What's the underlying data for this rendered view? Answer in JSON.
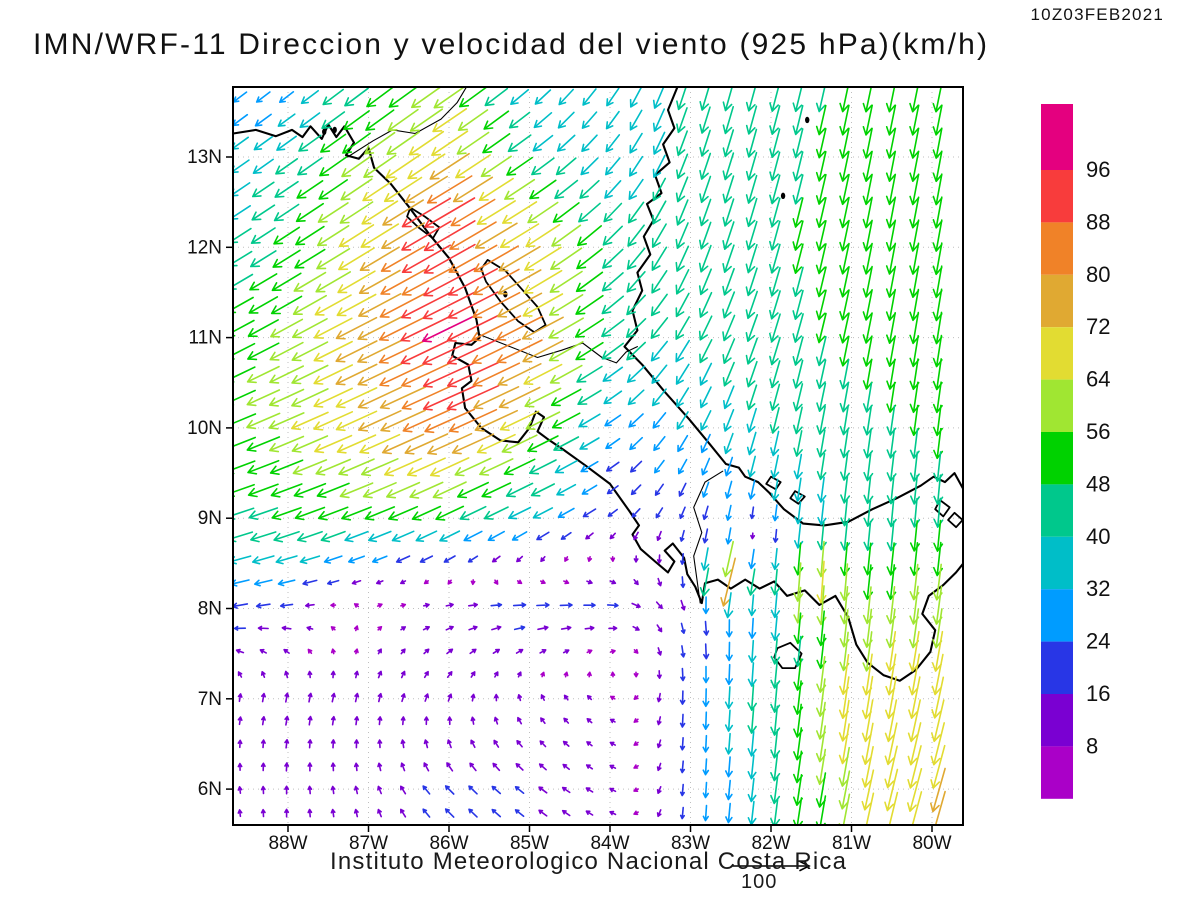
{
  "header": {
    "title": "IMN/WRF-11 Direccion y velocidad del viento (925 hPa)(km/h)",
    "timestamp": "10Z03FEB2021"
  },
  "footer": {
    "institution": "Instituto Meteorologico Nacional Costa Rica",
    "reference_arrow_label": "100"
  },
  "axes": {
    "lat_labels": [
      "13N",
      "12N",
      "11N",
      "10N",
      "9N",
      "8N",
      "7N",
      "6N"
    ],
    "lat_values": [
      13,
      12,
      11,
      10,
      9,
      8,
      7,
      6
    ],
    "lon_labels": [
      "88W",
      "87W",
      "86W",
      "85W",
      "84W",
      "83W",
      "82W",
      "81W",
      "80W"
    ],
    "lon_values": [
      -88,
      -87,
      -86,
      -85,
      -84,
      -83,
      -82,
      -81,
      -80
    ]
  },
  "colorbar": {
    "labels": [
      "96",
      "88",
      "80",
      "72",
      "64",
      "56",
      "48",
      "40",
      "32",
      "24",
      "16",
      "8"
    ],
    "levels": [
      8,
      16,
      24,
      32,
      40,
      48,
      56,
      64,
      72,
      80,
      88,
      96
    ],
    "colors": [
      "#aa00c8",
      "#7a00d2",
      "#2836e6",
      "#009cff",
      "#00bec8",
      "#00c88c",
      "#00d200",
      "#a0e632",
      "#e2dc32",
      "#e0a932",
      "#f08228",
      "#f83c3c",
      "#e4007f"
    ]
  },
  "chart_data": {
    "type": "vector_field_map",
    "variable": "Direccion y velocidad del viento",
    "level": "925 hPa",
    "units": "km/h",
    "valid_time": "10Z03FEB2021",
    "model": "IMN/WRF-11",
    "lon_range": [
      -88.68,
      -79.61
    ],
    "lat_range": [
      5.6,
      13.78
    ],
    "speed_levels": [
      8,
      16,
      24,
      32,
      40,
      48,
      56,
      64,
      72,
      80,
      88,
      96
    ],
    "speed_colors": [
      "#aa00c8",
      "#7a00d2",
      "#2836e6",
      "#009cff",
      "#00bec8",
      "#00c88c",
      "#00d200",
      "#a0e632",
      "#e2dc32",
      "#e0a932",
      "#f08228",
      "#f83c3c",
      "#e4007f"
    ],
    "reference_speed": 100,
    "grid": {
      "lons": [
        -89,
        -88,
        -87,
        -86,
        -85,
        -84,
        -83,
        -82,
        -81,
        -80,
        -79
      ],
      "lats": [
        14,
        13,
        12,
        11,
        10,
        9,
        8,
        7,
        6
      ],
      "u": [
        [
          -18,
          -16,
          -36,
          -45,
          -20,
          -18,
          -12,
          -12,
          -10,
          -10,
          -10
        ],
        [
          -24,
          -34,
          -48,
          -60,
          -35,
          -22,
          -14,
          -12,
          -10,
          -9,
          -9
        ],
        [
          -32,
          -42,
          -58,
          -80,
          -62,
          -32,
          -16,
          -13,
          -10,
          -9,
          -9
        ],
        [
          -42,
          -52,
          -68,
          -88,
          -72,
          -36,
          -20,
          -14,
          -10,
          -8,
          -8
        ],
        [
          -46,
          -56,
          -66,
          -76,
          -58,
          -24,
          -16,
          -10,
          -7,
          -6,
          -6
        ],
        [
          -42,
          -46,
          -46,
          -42,
          -32,
          -14,
          -6,
          -4,
          -4,
          -4,
          -4
        ],
        [
          -26,
          -18,
          4,
          13,
          22,
          18,
          4,
          -3,
          -6,
          -8,
          -10
        ],
        [
          2,
          3,
          3,
          4,
          -4,
          -7,
          0,
          -4,
          -10,
          -14,
          -14
        ],
        [
          -2,
          0,
          -3,
          -13,
          -13,
          -9,
          -1,
          -5,
          -12,
          -20,
          -18
        ]
      ],
      "v": [
        [
          -14,
          -13,
          -28,
          -32,
          -20,
          -28,
          -42,
          -46,
          -47,
          -47,
          -50
        ],
        [
          -17,
          -24,
          -34,
          -40,
          -25,
          -26,
          -40,
          -45,
          -48,
          -48,
          -50
        ],
        [
          -20,
          -27,
          -36,
          -45,
          -38,
          -30,
          -42,
          -46,
          -49,
          -50,
          -52
        ],
        [
          -22,
          -28,
          -34,
          -42,
          -36,
          -26,
          -36,
          -44,
          -48,
          -50,
          -52
        ],
        [
          -18,
          -24,
          -30,
          -34,
          -28,
          -16,
          -28,
          -40,
          -46,
          -48,
          -50
        ],
        [
          -13,
          -16,
          -18,
          -20,
          -16,
          -10,
          -18,
          -30,
          -42,
          -46,
          -48
        ],
        [
          -5,
          -2,
          2,
          3,
          2,
          0,
          -16,
          -32,
          -58,
          -62,
          -58
        ],
        [
          11,
          14,
          13,
          11,
          9,
          5,
          -24,
          -46,
          -68,
          -66,
          -60
        ],
        [
          9,
          12,
          11,
          13,
          10,
          5,
          -20,
          -42,
          -62,
          -70,
          -64
        ]
      ]
    },
    "local_features": [
      {
        "name": "papagayo-jet-core",
        "lon": -86.1,
        "lat": 12.25,
        "u": -82,
        "v": -48,
        "r": 0.35
      },
      {
        "name": "nicoya-jet",
        "lon": -85.85,
        "lat": 10.38,
        "u": -85,
        "v": -38,
        "r": 0.3
      },
      {
        "name": "chiriqui-gap-jet",
        "lon": -82.55,
        "lat": 8.35,
        "u": -20,
        "v": -80,
        "r": 0.28
      },
      {
        "name": "panama-west-jet",
        "lon": -81.45,
        "lat": 8.25,
        "u": -5,
        "v": -68,
        "r": 0.4
      },
      {
        "name": "talamanca-lee-calm",
        "lon": -82.15,
        "lat": 8.85,
        "u": 0,
        "v": -6,
        "r": 0.25
      }
    ],
    "coastlines": {
      "pacific_mainland": [
        [
          -88.68,
          13.26
        ],
        [
          -88.4,
          13.3
        ],
        [
          -88.15,
          13.23
        ],
        [
          -87.95,
          13.3
        ],
        [
          -87.82,
          13.22
        ],
        [
          -87.72,
          13.34
        ],
        [
          -87.58,
          13.2
        ],
        [
          -87.5,
          13.36
        ],
        [
          -87.4,
          13.22
        ],
        [
          -87.3,
          13.34
        ],
        [
          -87.18,
          13.16
        ],
        [
          -87.28,
          13.02
        ],
        [
          -87.12,
          12.98
        ],
        [
          -87.0,
          13.1
        ],
        [
          -86.93,
          12.88
        ],
        [
          -86.72,
          12.7
        ],
        [
          -86.5,
          12.45
        ],
        [
          -86.25,
          12.15
        ],
        [
          -86.0,
          11.88
        ],
        [
          -85.8,
          11.55
        ],
        [
          -85.66,
          11.2
        ],
        [
          -85.62,
          11.0
        ],
        [
          -85.72,
          10.92
        ],
        [
          -85.92,
          10.94
        ],
        [
          -85.96,
          10.8
        ],
        [
          -85.76,
          10.7
        ],
        [
          -85.72,
          10.52
        ],
        [
          -85.84,
          10.44
        ],
        [
          -85.8,
          10.22
        ],
        [
          -85.6,
          10.0
        ],
        [
          -85.36,
          9.86
        ],
        [
          -85.14,
          9.84
        ],
        [
          -85.0,
          10.0
        ],
        [
          -84.92,
          10.18
        ],
        [
          -84.82,
          10.12
        ],
        [
          -84.9,
          9.96
        ],
        [
          -84.78,
          9.88
        ],
        [
          -84.58,
          9.76
        ],
        [
          -84.3,
          9.58
        ],
        [
          -84.0,
          9.38
        ],
        [
          -83.76,
          9.08
        ],
        [
          -83.64,
          8.92
        ],
        [
          -83.72,
          8.82
        ],
        [
          -83.62,
          8.66
        ],
        [
          -83.44,
          8.52
        ],
        [
          -83.28,
          8.4
        ],
        [
          -83.2,
          8.52
        ],
        [
          -83.32,
          8.64
        ],
        [
          -83.22,
          8.72
        ],
        [
          -83.08,
          8.56
        ],
        [
          -83.04,
          8.38
        ],
        [
          -82.94,
          8.24
        ],
        [
          -82.86,
          8.06
        ],
        [
          -82.82,
          8.28
        ],
        [
          -82.66,
          8.32
        ],
        [
          -82.5,
          8.22
        ],
        [
          -82.32,
          8.32
        ],
        [
          -82.14,
          8.22
        ],
        [
          -81.96,
          8.3
        ],
        [
          -81.8,
          8.14
        ],
        [
          -81.58,
          8.2
        ],
        [
          -81.4,
          8.04
        ],
        [
          -81.2,
          8.14
        ],
        [
          -81.04,
          7.9
        ],
        [
          -80.94,
          7.6
        ],
        [
          -80.8,
          7.4
        ],
        [
          -80.6,
          7.26
        ],
        [
          -80.4,
          7.2
        ],
        [
          -80.2,
          7.32
        ],
        [
          -80.02,
          7.52
        ],
        [
          -79.96,
          7.76
        ],
        [
          -80.12,
          7.94
        ],
        [
          -80.04,
          8.14
        ],
        [
          -79.86,
          8.26
        ],
        [
          -79.7,
          8.4
        ],
        [
          -79.61,
          8.5
        ]
      ],
      "caribbean": [
        [
          -83.16,
          13.78
        ],
        [
          -83.28,
          13.52
        ],
        [
          -83.2,
          13.32
        ],
        [
          -83.34,
          13.14
        ],
        [
          -83.26,
          12.94
        ],
        [
          -83.44,
          12.8
        ],
        [
          -83.36,
          12.6
        ],
        [
          -83.54,
          12.48
        ],
        [
          -83.46,
          12.3
        ],
        [
          -83.58,
          12.12
        ],
        [
          -83.5,
          11.92
        ],
        [
          -83.66,
          11.72
        ],
        [
          -83.6,
          11.52
        ],
        [
          -83.72,
          11.3
        ],
        [
          -83.66,
          11.08
        ],
        [
          -83.82,
          10.9
        ],
        [
          -83.6,
          10.7
        ],
        [
          -83.32,
          10.4
        ],
        [
          -83.02,
          10.1
        ],
        [
          -82.76,
          9.82
        ],
        [
          -82.56,
          9.6
        ],
        [
          -82.4,
          9.56
        ],
        [
          -82.32,
          9.46
        ],
        [
          -82.16,
          9.4
        ],
        [
          -82.02,
          9.28
        ],
        [
          -81.84,
          9.1
        ],
        [
          -81.6,
          8.94
        ],
        [
          -81.34,
          8.92
        ],
        [
          -81.04,
          8.96
        ],
        [
          -80.74,
          9.1
        ],
        [
          -80.44,
          9.22
        ],
        [
          -80.14,
          9.36
        ],
        [
          -79.98,
          9.46
        ],
        [
          -79.84,
          9.4
        ],
        [
          -79.72,
          9.5
        ],
        [
          -79.61,
          9.32
        ]
      ],
      "borders": [
        [
          [
            -87.26,
            13.0
          ],
          [
            -86.94,
            13.18
          ],
          [
            -86.7,
            13.3
          ],
          [
            -86.42,
            13.26
          ],
          [
            -86.1,
            13.42
          ],
          [
            -85.9,
            13.6
          ],
          [
            -85.78,
            13.78
          ]
        ],
        [
          [
            -85.64,
            11.04
          ],
          [
            -85.3,
            10.92
          ],
          [
            -84.9,
            10.78
          ],
          [
            -84.6,
            10.86
          ],
          [
            -84.34,
            10.94
          ],
          [
            -84.1,
            10.78
          ],
          [
            -83.92,
            10.72
          ],
          [
            -83.8,
            10.84
          ],
          [
            -83.66,
            10.9
          ]
        ],
        [
          [
            -82.6,
            9.52
          ],
          [
            -82.82,
            9.4
          ],
          [
            -82.96,
            9.12
          ],
          [
            -82.86,
            8.84
          ],
          [
            -82.96,
            8.58
          ],
          [
            -82.88,
            8.06
          ]
        ]
      ],
      "closed_features": [
        [
          [
            -85.52,
            11.86
          ],
          [
            -85.3,
            11.74
          ],
          [
            -85.1,
            11.54
          ],
          [
            -84.9,
            11.34
          ],
          [
            -84.8,
            11.14
          ],
          [
            -84.94,
            11.06
          ],
          [
            -85.14,
            11.18
          ],
          [
            -85.36,
            11.4
          ],
          [
            -85.54,
            11.62
          ],
          [
            -85.6,
            11.76
          ]
        ],
        [
          [
            -86.48,
            12.44
          ],
          [
            -86.3,
            12.34
          ],
          [
            -86.12,
            12.22
          ],
          [
            -86.2,
            12.1
          ],
          [
            -86.38,
            12.22
          ],
          [
            -86.52,
            12.34
          ]
        ],
        [
          [
            -81.92,
            7.56
          ],
          [
            -81.76,
            7.62
          ],
          [
            -81.62,
            7.5
          ],
          [
            -81.7,
            7.34
          ],
          [
            -81.86,
            7.34
          ],
          [
            -81.96,
            7.46
          ]
        ],
        [
          [
            -82.0,
            9.46
          ],
          [
            -81.88,
            9.4
          ],
          [
            -81.94,
            9.32
          ],
          [
            -82.06,
            9.38
          ]
        ],
        [
          [
            -81.7,
            9.3
          ],
          [
            -81.58,
            9.24
          ],
          [
            -81.66,
            9.16
          ],
          [
            -81.76,
            9.22
          ]
        ],
        [
          [
            -79.9,
            9.2
          ],
          [
            -79.78,
            9.12
          ],
          [
            -79.86,
            9.02
          ],
          [
            -79.96,
            9.1
          ]
        ],
        [
          [
            -79.72,
            9.06
          ],
          [
            -79.62,
            8.98
          ],
          [
            -79.7,
            8.9
          ],
          [
            -79.8,
            8.98
          ]
        ]
      ],
      "island_dots": [
        [
          -81.55,
          13.41
        ],
        [
          -81.85,
          12.57
        ],
        [
          -85.3,
          11.48
        ],
        [
          -87.55,
          13.28
        ],
        [
          -87.42,
          13.3
        ]
      ]
    }
  }
}
